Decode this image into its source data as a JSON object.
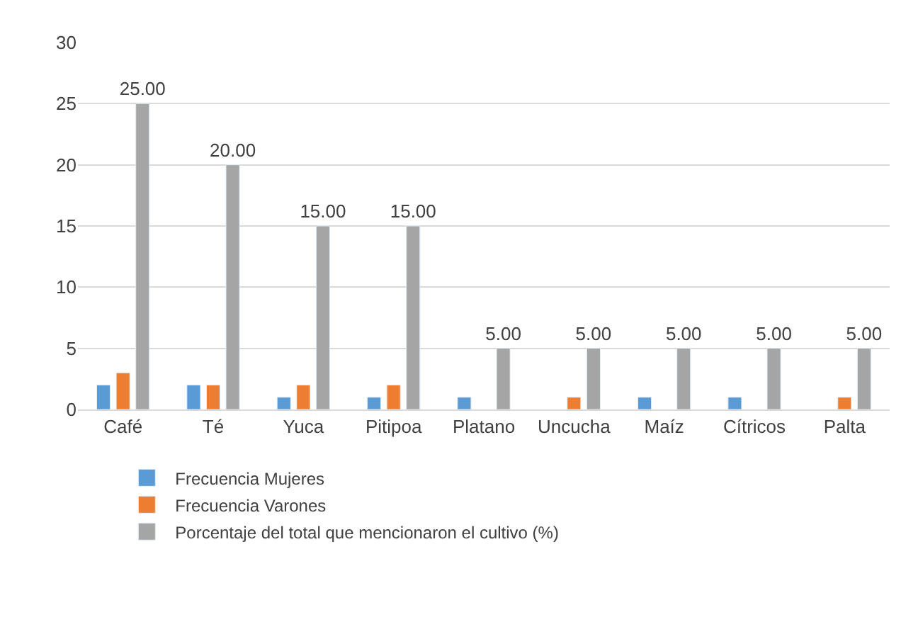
{
  "chart_data": {
    "type": "bar",
    "categories": [
      "Café",
      "Té",
      "Yuca",
      "Pitipoa",
      "Platano",
      "Uncucha",
      "Maíz",
      "Cítricos",
      "Palta"
    ],
    "series": [
      {
        "name": "Frecuencia Mujeres",
        "color": "#5b9bd5",
        "values": [
          2,
          2,
          1,
          1,
          1,
          null,
          1,
          1,
          null
        ]
      },
      {
        "name": "Frecuencia Varones",
        "color": "#ed7d31",
        "values": [
          3,
          2,
          2,
          2,
          null,
          1,
          null,
          null,
          1
        ]
      },
      {
        "name": "Porcentaje del total que mencionaron el cultivo (%)",
        "color": "#a5a5a5",
        "values": [
          25,
          20,
          15,
          15,
          5,
          5,
          5,
          5,
          5
        ],
        "value_labels": [
          "25.00",
          "20.00",
          "15.00",
          "15.00",
          "5.00",
          "5.00",
          "5.00",
          "5.00",
          "5.00"
        ]
      }
    ],
    "ylim": [
      0,
      30
    ],
    "yticks": [
      0,
      5,
      10,
      15,
      20,
      25,
      30
    ],
    "grid": "y",
    "legend": "bottom"
  }
}
